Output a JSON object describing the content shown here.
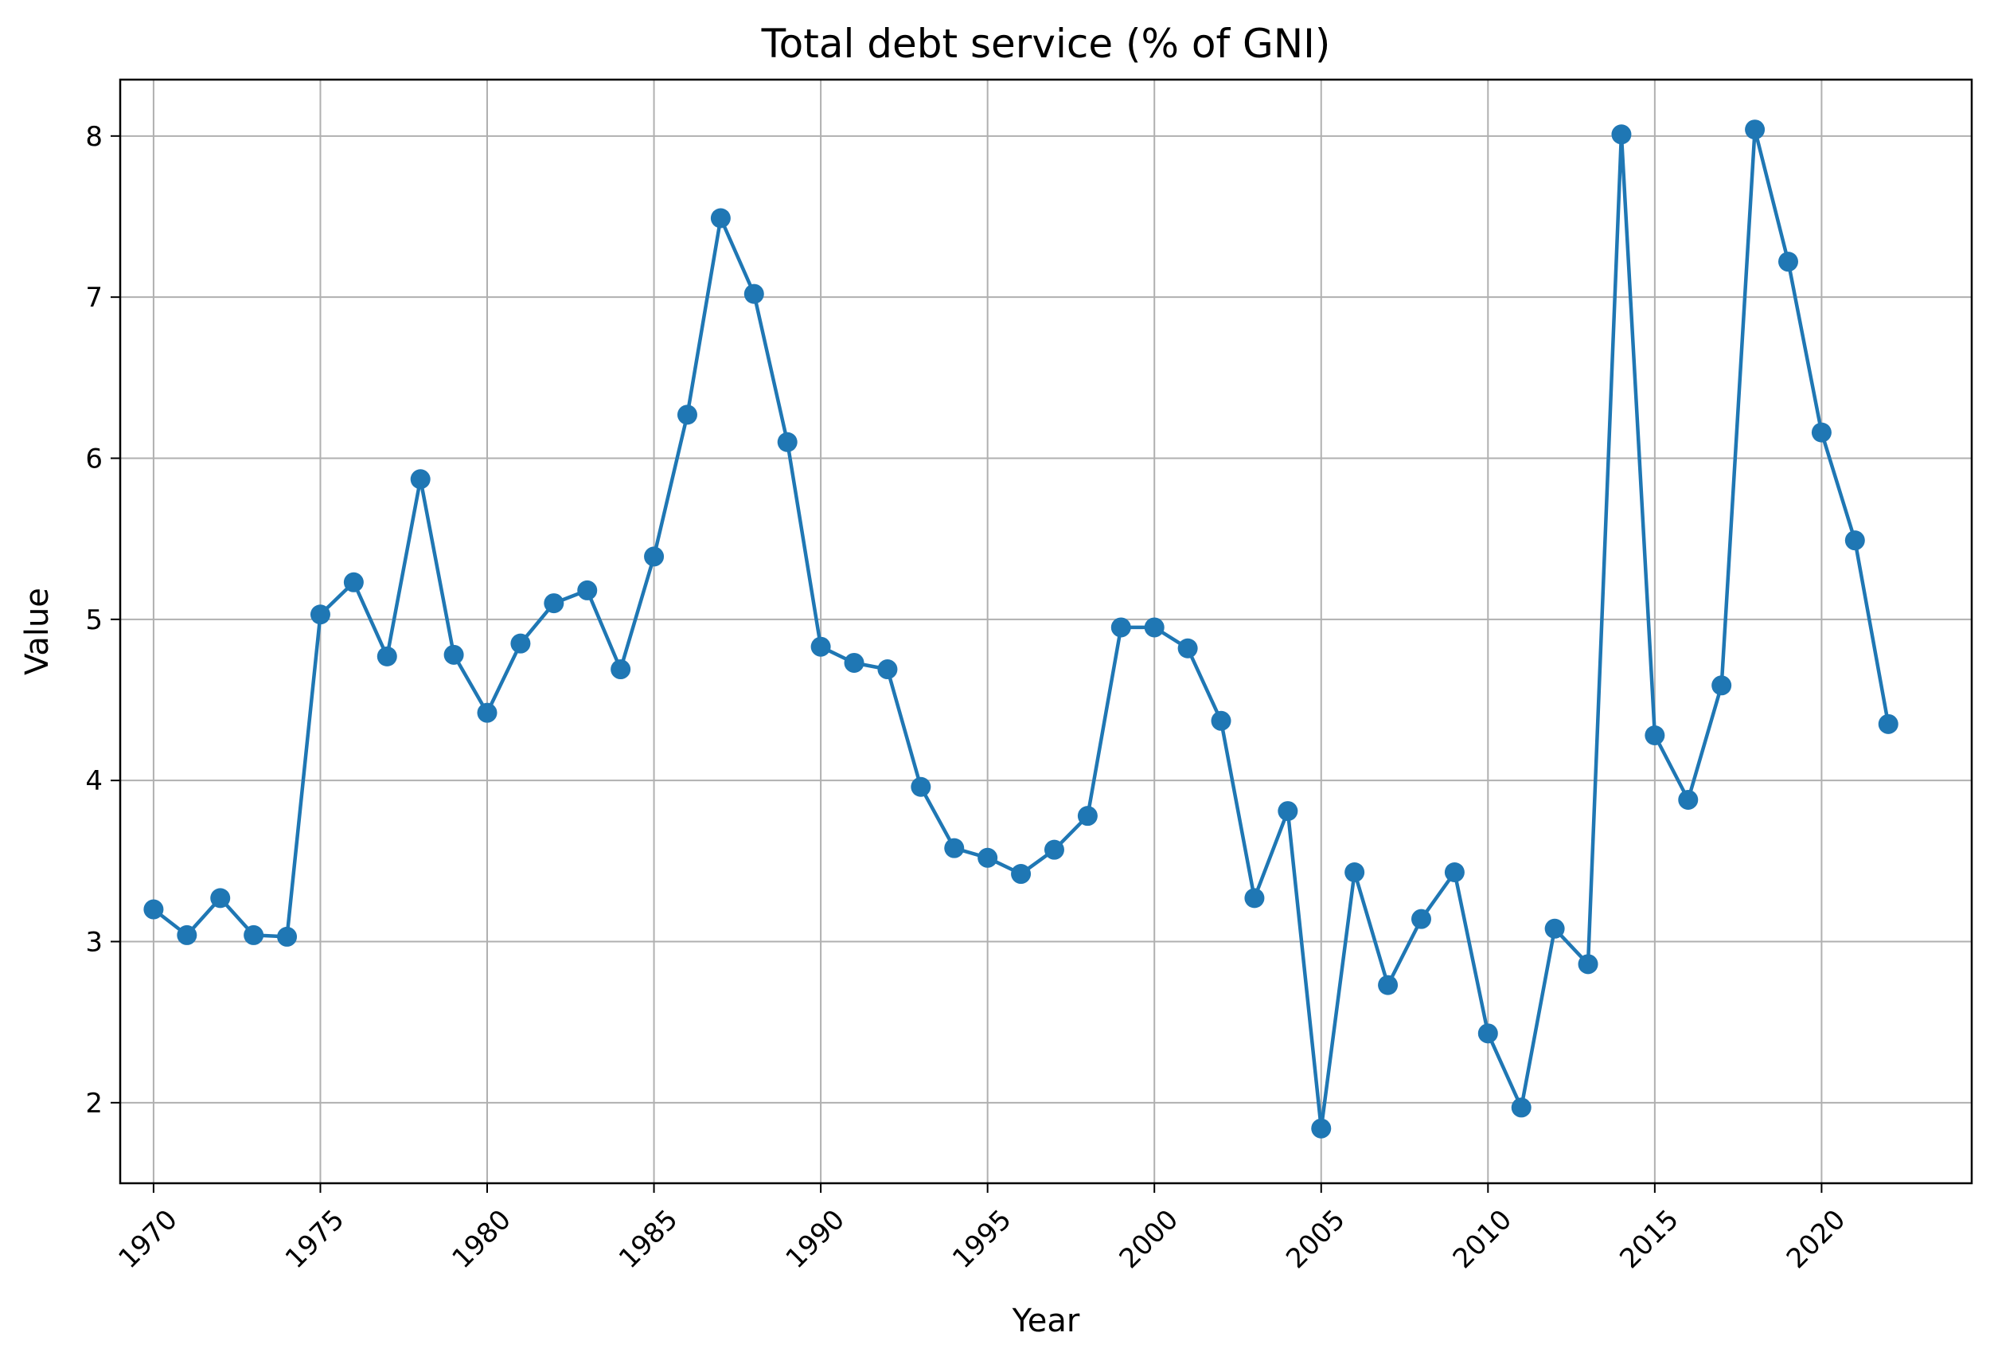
{
  "chart_data": {
    "type": "line",
    "title": "Total debt service (% of GNI)",
    "xlabel": "Year",
    "ylabel": "Value",
    "xlim": [
      1969,
      2024.5
    ],
    "ylim": [
      1.5,
      8.35
    ],
    "xticks": [
      1970,
      1975,
      1980,
      1985,
      1990,
      1995,
      2000,
      2005,
      2010,
      2015,
      2020
    ],
    "yticks": [
      2,
      3,
      4,
      5,
      6,
      7,
      8
    ],
    "grid": true,
    "line_color": "#1f77b4",
    "marker": "circle",
    "x": [
      1970,
      1971,
      1972,
      1973,
      1974,
      1975,
      1976,
      1977,
      1978,
      1979,
      1980,
      1981,
      1982,
      1983,
      1984,
      1985,
      1986,
      1987,
      1988,
      1989,
      1990,
      1991,
      1992,
      1993,
      1994,
      1995,
      1996,
      1997,
      1998,
      1999,
      2000,
      2001,
      2002,
      2003,
      2004,
      2005,
      2006,
      2007,
      2008,
      2009,
      2010,
      2011,
      2012,
      2013,
      2014,
      2015,
      2016,
      2017,
      2018,
      2019,
      2020,
      2021,
      2022
    ],
    "y": [
      3.2,
      3.04,
      3.27,
      3.04,
      3.03,
      5.03,
      5.23,
      4.77,
      5.87,
      4.78,
      4.42,
      4.85,
      5.1,
      5.18,
      4.69,
      5.39,
      6.27,
      7.49,
      7.02,
      6.1,
      4.83,
      4.73,
      4.69,
      3.96,
      3.58,
      3.52,
      3.42,
      3.57,
      3.78,
      4.95,
      4.95,
      4.82,
      4.37,
      3.27,
      3.81,
      1.84,
      3.43,
      2.73,
      3.14,
      3.43,
      2.43,
      1.97,
      3.08,
      2.86,
      8.01,
      4.28,
      3.88,
      4.59,
      8.04,
      7.22,
      6.16,
      5.49,
      4.35
    ]
  }
}
